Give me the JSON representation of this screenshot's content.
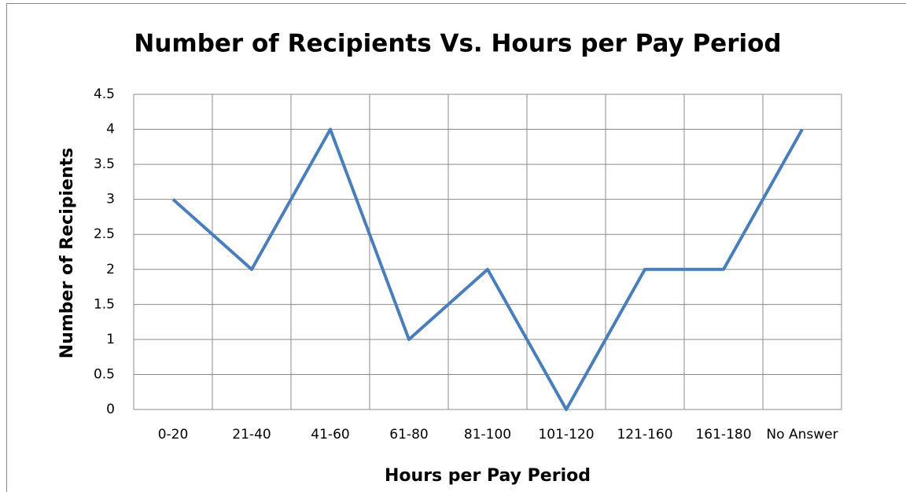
{
  "chart_data": {
    "type": "line",
    "title": "Number of Recipients Vs. Hours per Pay Period",
    "x_label": "Hours per Pay Period",
    "y_label": "Number of Recipients",
    "categories": [
      "0-20",
      "21-40",
      "41-60",
      "61-80",
      "81-100",
      "101-120",
      "121-160",
      "161-180",
      "No Answer"
    ],
    "series": [
      {
        "name": "Number of Recipients",
        "color": "#4a7ebb",
        "values": [
          3,
          2,
          4,
          1,
          2,
          0,
          2,
          2,
          4
        ]
      }
    ],
    "ylim": [
      0,
      4.5
    ],
    "yticks": [
      0,
      0.5,
      1,
      1.5,
      2,
      2.5,
      3,
      3.5,
      4,
      4.5
    ],
    "grid": true,
    "legend": false
  }
}
